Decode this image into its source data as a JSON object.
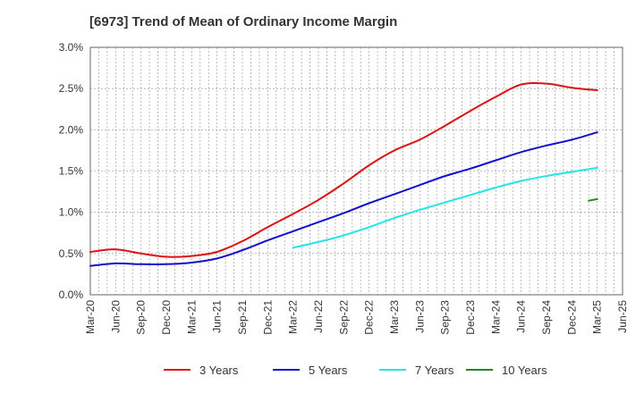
{
  "chart_data": {
    "type": "line",
    "title": "[6973]  Trend of Mean of Ordinary Income Margin",
    "xlabel": "",
    "ylabel": "",
    "x_ticks": [
      "Mar-20",
      "Jun-20",
      "Sep-20",
      "Dec-20",
      "Mar-21",
      "Jun-21",
      "Sep-21",
      "Dec-21",
      "Mar-22",
      "Jun-22",
      "Sep-22",
      "Dec-22",
      "Mar-23",
      "Jun-23",
      "Sep-23",
      "Dec-23",
      "Mar-24",
      "Jun-24",
      "Sep-24",
      "Dec-24",
      "Mar-25",
      "Jun-25"
    ],
    "y_ticks": [
      "0.0%",
      "0.5%",
      "1.0%",
      "1.5%",
      "2.0%",
      "2.5%",
      "3.0%"
    ],
    "ylim": [
      0,
      3.0
    ],
    "y_unit": "%",
    "grid": true,
    "legend_position": "bottom",
    "series": [
      {
        "name": "3 Years",
        "color": "#dd1111",
        "x": [
          "Mar-20",
          "Jun-20",
          "Sep-20",
          "Dec-20",
          "Mar-21",
          "Jun-21",
          "Sep-21",
          "Dec-21",
          "Mar-22",
          "Jun-22",
          "Sep-22",
          "Dec-22",
          "Mar-23",
          "Jun-23",
          "Sep-23",
          "Dec-23",
          "Mar-24",
          "Jun-24",
          "Sep-24",
          "Dec-24",
          "Mar-25"
        ],
        "values": [
          0.52,
          0.55,
          0.5,
          0.46,
          0.47,
          0.52,
          0.65,
          0.82,
          0.98,
          1.15,
          1.35,
          1.57,
          1.75,
          1.88,
          2.05,
          2.23,
          2.4,
          2.55,
          2.56,
          2.51,
          2.48
        ]
      },
      {
        "name": "5 Years",
        "color": "#1111cc",
        "x": [
          "Mar-20",
          "Jun-20",
          "Sep-20",
          "Dec-20",
          "Mar-21",
          "Jun-21",
          "Sep-21",
          "Dec-21",
          "Mar-22",
          "Jun-22",
          "Sep-22",
          "Dec-22",
          "Mar-23",
          "Jun-23",
          "Sep-23",
          "Dec-23",
          "Mar-24",
          "Jun-24",
          "Sep-24",
          "Dec-24",
          "Mar-25"
        ],
        "values": [
          0.35,
          0.38,
          0.37,
          0.37,
          0.39,
          0.44,
          0.54,
          0.66,
          0.77,
          0.88,
          0.99,
          1.11,
          1.22,
          1.33,
          1.44,
          1.53,
          1.63,
          1.73,
          1.81,
          1.88,
          1.97
        ]
      },
      {
        "name": "7 Years",
        "color": "#22e5e5",
        "x": [
          "Mar-22",
          "Jun-22",
          "Sep-22",
          "Dec-22",
          "Mar-23",
          "Jun-23",
          "Sep-23",
          "Dec-23",
          "Mar-24",
          "Jun-24",
          "Sep-24",
          "Dec-24",
          "Mar-25"
        ],
        "values": [
          0.57,
          0.64,
          0.72,
          0.82,
          0.93,
          1.03,
          1.12,
          1.21,
          1.3,
          1.38,
          1.44,
          1.49,
          1.54
        ]
      },
      {
        "name": "10 Years",
        "color": "#228822",
        "x": [
          "Feb-25",
          "Mar-25"
        ],
        "values": [
          1.14,
          1.16
        ]
      }
    ]
  }
}
